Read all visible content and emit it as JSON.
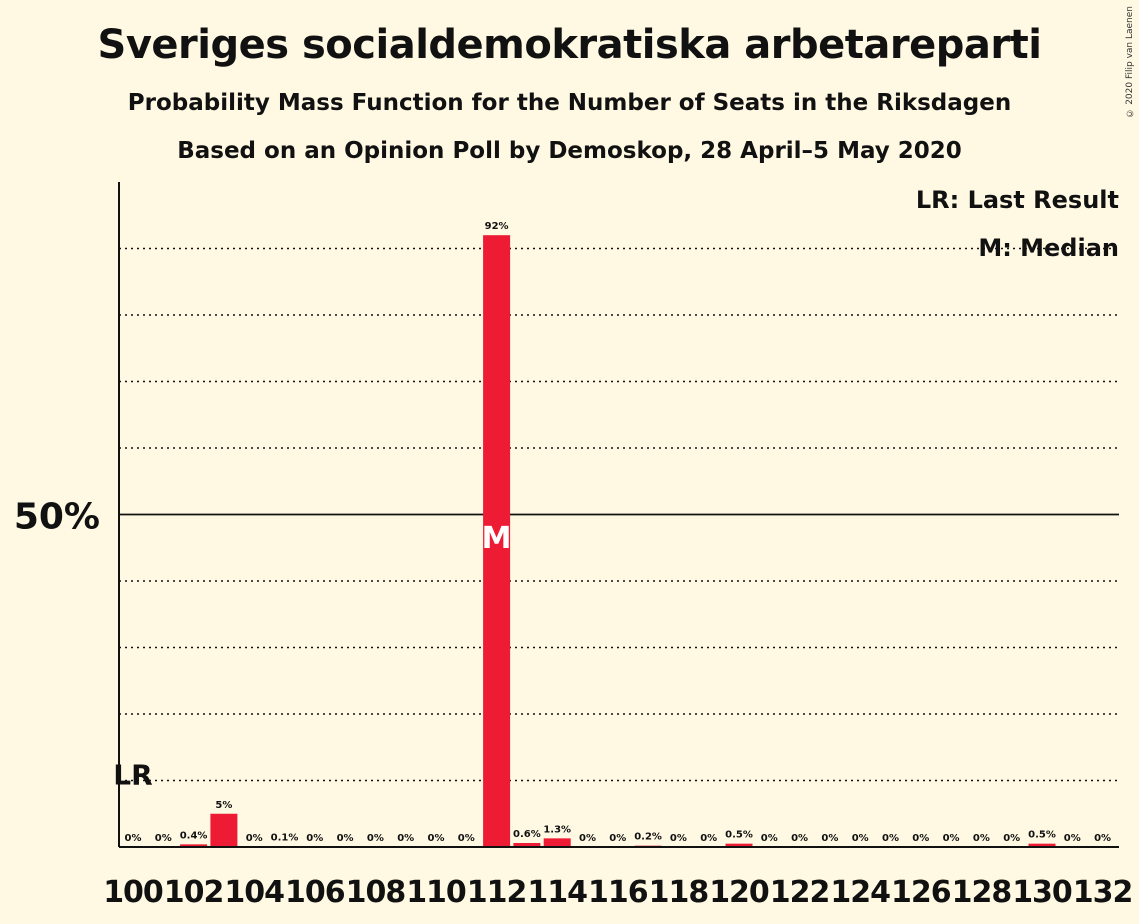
{
  "title": "Sveriges socialdemokratiska arbetareparti",
  "subtitle": "Probability Mass Function for the Number of Seats in the Riksdagen",
  "subtitle2": "Based on an Opinion Poll by Demoskop, 28 April–5 May 2020",
  "copyright": "© 2020 Filip van Laenen",
  "legend": {
    "lr": "LR: Last Result",
    "m": "M: Median"
  },
  "colors": {
    "background": "#fff9e3",
    "bar": "#ed1b34",
    "text": "#111111"
  },
  "chart_data": {
    "type": "bar",
    "xlabel": "",
    "ylabel": "",
    "ylim": [
      0,
      100
    ],
    "ytick_label": "50%",
    "ytick_value": 50,
    "grid": "dotted every 10%",
    "categories": [
      100,
      101,
      102,
      103,
      104,
      105,
      106,
      107,
      108,
      109,
      110,
      111,
      112,
      113,
      114,
      115,
      116,
      117,
      118,
      119,
      120,
      121,
      122,
      123,
      124,
      125,
      126,
      127,
      128,
      129,
      130,
      131,
      132
    ],
    "values": [
      0,
      0,
      0.4,
      5,
      0,
      0.1,
      0,
      0,
      0,
      0,
      0,
      0,
      92,
      0.6,
      1.3,
      0,
      0,
      0.2,
      0,
      0,
      0.5,
      0,
      0,
      0,
      0,
      0,
      0,
      0,
      0,
      0,
      0.5,
      0,
      0
    ],
    "value_labels": [
      "0%",
      "0%",
      "0.4%",
      "5%",
      "0%",
      "0.1%",
      "0%",
      "0%",
      "0%",
      "0%",
      "0%",
      "0%",
      "92%",
      "0.6%",
      "1.3%",
      "0%",
      "0%",
      "0.2%",
      "0%",
      "0%",
      "0.5%",
      "0%",
      "0%",
      "0%",
      "0%",
      "0%",
      "0%",
      "0%",
      "0%",
      "0%",
      "0.5%",
      "0%",
      "0%"
    ],
    "xtick_labels": [
      "100",
      "102",
      "104",
      "106",
      "108",
      "110",
      "112",
      "114",
      "116",
      "118",
      "120",
      "122",
      "124",
      "126",
      "128",
      "130",
      "132"
    ],
    "last_result_label": "LR",
    "last_result_seat": 100,
    "last_result_level": 10,
    "median_label": "M",
    "median_seat": 112
  }
}
